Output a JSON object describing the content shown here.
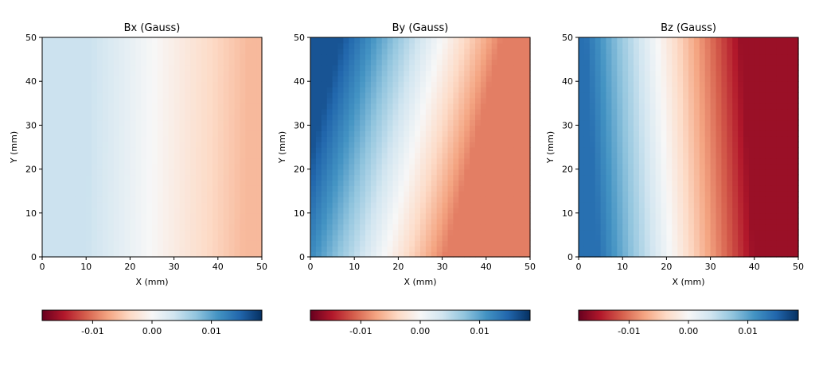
{
  "chart_data": [
    {
      "type": "heatmap",
      "title": "Bx (Gauss)",
      "xlabel": "X (mm)",
      "ylabel": "Y (mm)",
      "xlim": [
        0,
        50
      ],
      "ylim": [
        0,
        50
      ],
      "x_ticks": [
        "0",
        "10",
        "20",
        "30",
        "40",
        "50"
      ],
      "y_ticks": [
        "0",
        "10",
        "20",
        "30",
        "40",
        "50"
      ],
      "colormap": "RdBu",
      "color_range": [
        -0.0185,
        0.0185
      ],
      "field_model": {
        "zero_x_at_y0": 24.5,
        "zero_x_at_y50": 25.5,
        "gradient_per_mm": -0.00028,
        "clip": [
          -0.006,
          0.004
        ]
      },
      "colorbar": {
        "ticks": [
          "-0.01",
          "0.00",
          "0.01"
        ],
        "tick_values": [
          -0.01,
          0.0,
          0.01
        ]
      }
    },
    {
      "type": "heatmap",
      "title": "By (Gauss)",
      "xlabel": "X (mm)",
      "ylabel": "Y (mm)",
      "xlim": [
        0,
        50
      ],
      "ylim": [
        0,
        50
      ],
      "x_ticks": [
        "0",
        "10",
        "20",
        "30",
        "40",
        "50"
      ],
      "y_ticks": [
        "0",
        "10",
        "20",
        "30",
        "40",
        "50"
      ],
      "colormap": "RdBu",
      "color_range": [
        -0.0185,
        0.0185
      ],
      "field_model": {
        "zero_x_at_y0": 17,
        "zero_x_at_y50": 30,
        "gradient_per_mm": -0.0007,
        "clip": [
          -0.0095,
          0.016
        ]
      },
      "colorbar": {
        "ticks": [
          "-0.01",
          "0.00",
          "0.01"
        ],
        "tick_values": [
          -0.01,
          0.0,
          0.01
        ]
      }
    },
    {
      "type": "heatmap",
      "title": "Bz (Gauss)",
      "xlabel": "X (mm)",
      "ylabel": "Y (mm)",
      "xlim": [
        0,
        50
      ],
      "ylim": [
        0,
        50
      ],
      "x_ticks": [
        "0",
        "10",
        "20",
        "30",
        "40",
        "50"
      ],
      "y_ticks": [
        "0",
        "10",
        "20",
        "30",
        "40",
        "50"
      ],
      "colormap": "RdBu",
      "color_range": [
        -0.0185,
        0.0185
      ],
      "field_model": {
        "zero_x_at_y0": 21,
        "zero_x_at_y50": 18,
        "gradient_per_mm": -0.00085,
        "clip": [
          -0.016,
          0.014
        ]
      },
      "colorbar": {
        "ticks": [
          "-0.01",
          "0.00",
          "0.01"
        ],
        "tick_values": [
          -0.01,
          0.0,
          0.01
        ]
      }
    }
  ]
}
